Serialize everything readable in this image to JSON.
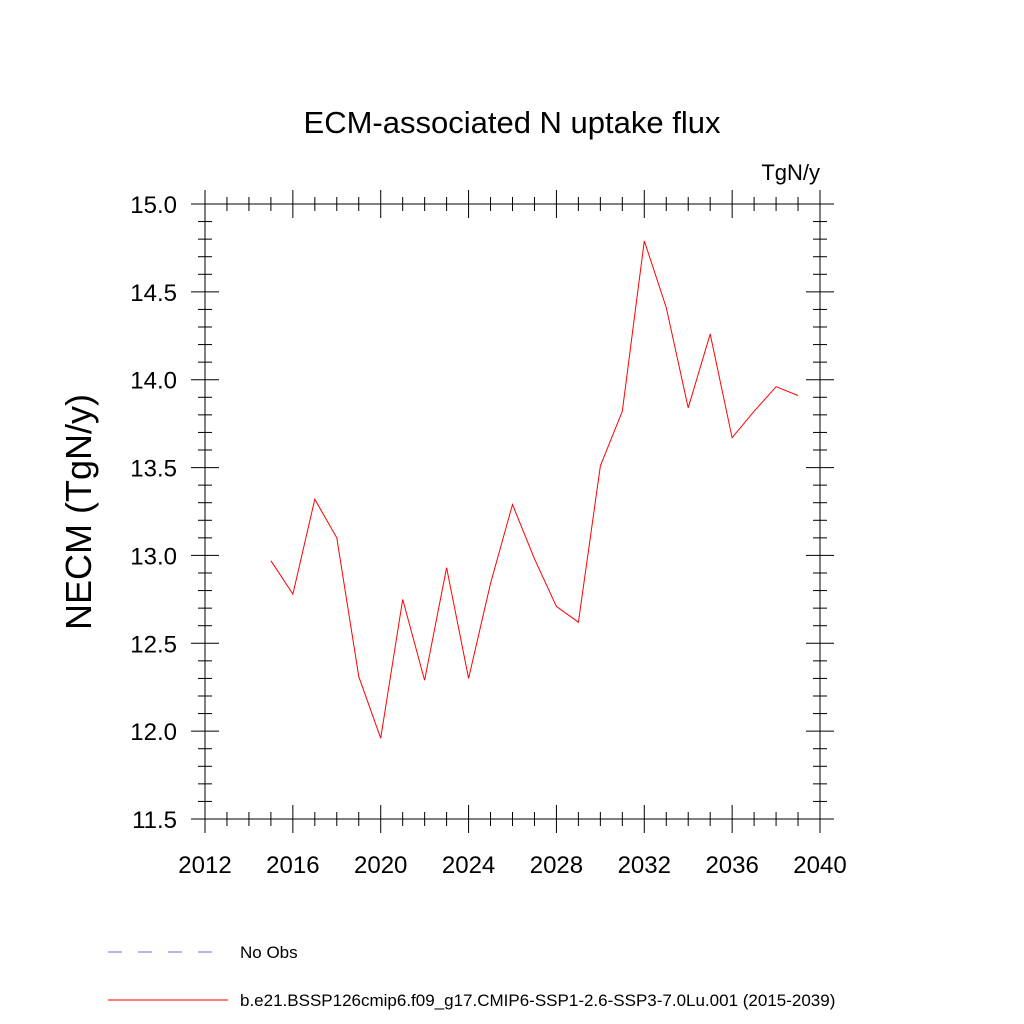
{
  "chart_data": {
    "type": "line",
    "title": "ECM-associated N uptake flux",
    "units": "TgN/y",
    "xlabel": "",
    "ylabel": "NECM  (TgN/y)",
    "xlim": [
      2012,
      2040
    ],
    "ylim": [
      11.5,
      15.0
    ],
    "x_ticks": [
      2012,
      2016,
      2020,
      2024,
      2028,
      2032,
      2036,
      2040
    ],
    "x_tick_labels": [
      "2012",
      "2016",
      "2020",
      "2024",
      "2028",
      "2032",
      "2036",
      "2040"
    ],
    "y_ticks": [
      11.5,
      12.0,
      12.5,
      13.0,
      13.5,
      14.0,
      14.5,
      15.0
    ],
    "y_tick_labels": [
      "11.5",
      "12.0",
      "12.5",
      "13.0",
      "13.5",
      "14.0",
      "14.5",
      "15.0"
    ],
    "grid": false,
    "legend_position": "bottom",
    "series": [
      {
        "name": "b.e21.BSSP126cmip6.f09_g17.CMIP6-SSP1-2.6-SSP3-7.0Lu.001 (2015-2039)",
        "color": "#ff0000",
        "style": "solid",
        "x": [
          2015,
          2016,
          2017,
          2018,
          2019,
          2020,
          2021,
          2022,
          2023,
          2024,
          2025,
          2026,
          2027,
          2028,
          2029,
          2030,
          2031,
          2032,
          2033,
          2034,
          2035,
          2036,
          2037,
          2038,
          2039
        ],
        "y": [
          12.97,
          12.78,
          13.32,
          13.1,
          12.31,
          11.96,
          12.75,
          12.29,
          12.93,
          12.3,
          12.84,
          13.29,
          12.98,
          12.71,
          12.62,
          13.51,
          13.82,
          14.79,
          14.41,
          13.84,
          14.26,
          13.67,
          13.82,
          13.96,
          13.91
        ]
      }
    ],
    "legend": [
      {
        "label": "No Obs",
        "color": "#6c6cd0",
        "style": "dashed"
      },
      {
        "label": "b.e21.BSSP126cmip6.f09_g17.CMIP6-SSP1-2.6-SSP3-7.0Lu.001 (2015-2039)",
        "color": "#ff0000",
        "style": "solid"
      }
    ]
  }
}
